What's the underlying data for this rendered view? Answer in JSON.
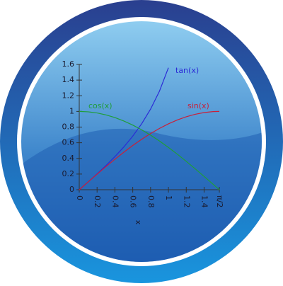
{
  "chart_data": {
    "type": "line",
    "xlabel": "x",
    "x": [
      0,
      0.1,
      0.2,
      0.3,
      0.4,
      0.5,
      0.6,
      0.7,
      0.8,
      0.9,
      1.0,
      1.1,
      1.2,
      1.3,
      1.4,
      1.5,
      1.5708
    ],
    "series": [
      {
        "name": "tan(x)",
        "color": "#2b2bd6",
        "values": [
          0,
          0.1003,
          0.2027,
          0.3093,
          0.4228,
          0.5463,
          0.6841,
          0.8423,
          1.0296,
          1.2602,
          1.5574,
          null,
          null,
          null,
          null,
          null,
          null
        ]
      },
      {
        "name": "sin(x)",
        "color": "#c8203a",
        "values": [
          0,
          0.0998,
          0.1987,
          0.2955,
          0.3894,
          0.4794,
          0.5646,
          0.6442,
          0.7174,
          0.7833,
          0.8415,
          0.8912,
          0.932,
          0.9636,
          0.9854,
          0.9975,
          1.0
        ]
      },
      {
        "name": "cos(x)",
        "color": "#1f9e3a",
        "values": [
          1,
          0.995,
          0.9801,
          0.9553,
          0.9211,
          0.8776,
          0.8253,
          0.7648,
          0.6967,
          0.6216,
          0.5403,
          0.4536,
          0.3624,
          0.2675,
          0.17,
          0.0707,
          0.0
        ]
      }
    ],
    "xlim": [
      0,
      1.5708
    ],
    "xticks": [
      0,
      0.2,
      0.4,
      0.6,
      0.8,
      1,
      1.2,
      1.4,
      {
        "value": 1.5708,
        "label": "π/2"
      }
    ],
    "ylim": [
      0,
      1.6
    ],
    "yticks": [
      0,
      0.2,
      0.4,
      0.6,
      0.8,
      1,
      1.2,
      1.4,
      1.6
    ],
    "grid": false
  }
}
